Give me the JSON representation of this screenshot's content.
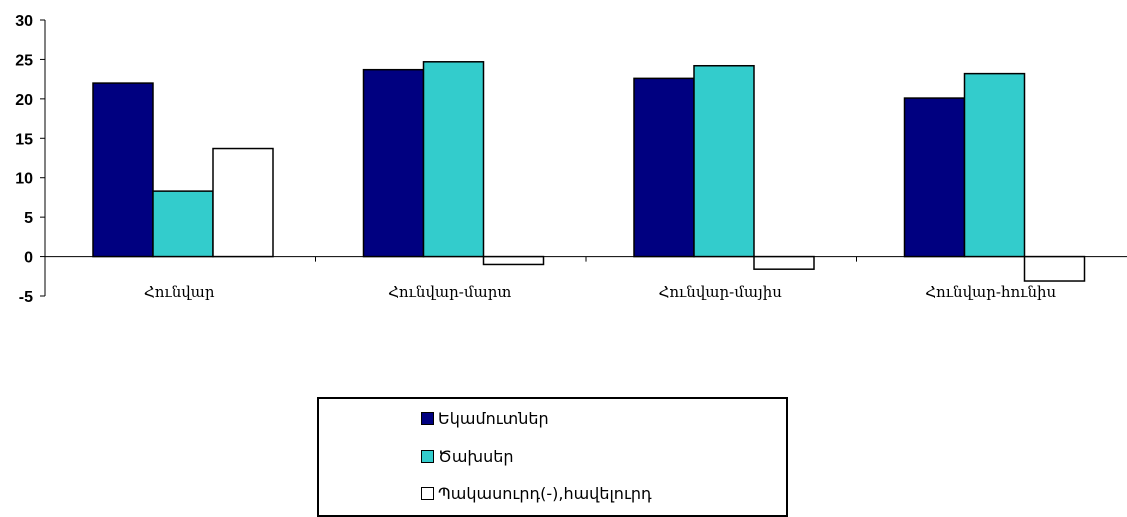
{
  "chart_data": {
    "type": "bar",
    "categories": [
      "Հունվար",
      "Հունվար-մարտ",
      "Հունվար-մայիս",
      "Հունվար-հունիս"
    ],
    "series": [
      {
        "name": "Եկամուտներ",
        "color": "#000080",
        "values": [
          22.0,
          23.7,
          22.6,
          20.1
        ]
      },
      {
        "name": "Ծախսեր",
        "color": "#33CCCC",
        "values": [
          8.3,
          24.7,
          24.2,
          23.2
        ]
      },
      {
        "name": "Պակասուրդ(-),հավելուրդ",
        "color": "#FFFFFF",
        "values": [
          13.7,
          -1.0,
          -1.6,
          -3.1
        ]
      }
    ],
    "ylim": [
      -5,
      30
    ],
    "yticks": [
      -5,
      0,
      5,
      10,
      15,
      20,
      25,
      30
    ],
    "ytick_labels": [
      "-5",
      "0",
      "5",
      "10",
      "15",
      "20",
      "25",
      "30"
    ],
    "grid": false,
    "legend_position": "bottom"
  }
}
